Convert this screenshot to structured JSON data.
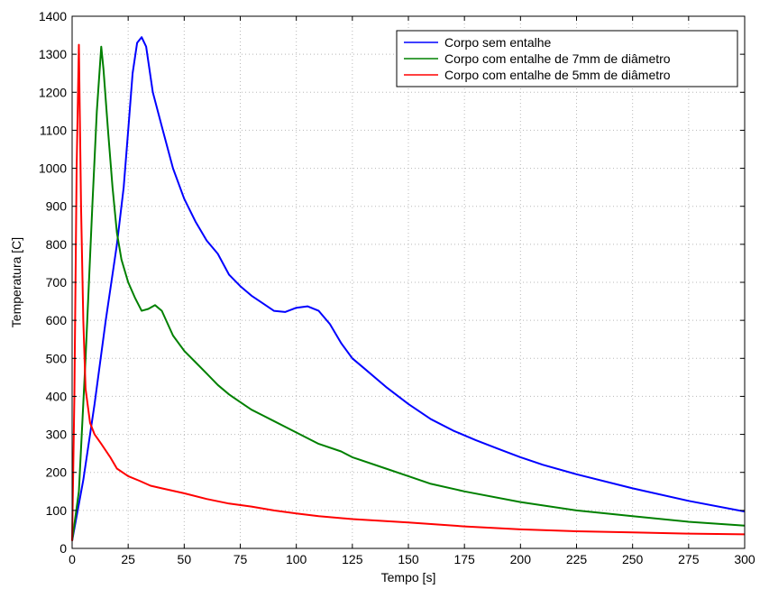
{
  "chart_data": {
    "type": "line",
    "title": "",
    "xlabel": "Tempo [s]",
    "ylabel": "Temperatura [C]",
    "xlim": [
      0,
      300
    ],
    "ylim": [
      0,
      1400
    ],
    "x_ticks": [
      0,
      25,
      50,
      75,
      100,
      125,
      150,
      175,
      200,
      225,
      250,
      275,
      300
    ],
    "y_ticks": [
      0,
      100,
      200,
      300,
      400,
      500,
      600,
      700,
      800,
      900,
      1000,
      1100,
      1200,
      1300,
      1400
    ],
    "grid": true,
    "legend_position": "top-right",
    "series": [
      {
        "name": "Corpo sem entalhe",
        "color": "#0000ff",
        "points": [
          [
            0,
            20
          ],
          [
            5,
            180
          ],
          [
            10,
            380
          ],
          [
            15,
            600
          ],
          [
            20,
            800
          ],
          [
            23,
            950
          ],
          [
            25,
            1100
          ],
          [
            27,
            1250
          ],
          [
            29,
            1330
          ],
          [
            31,
            1345
          ],
          [
            33,
            1320
          ],
          [
            36,
            1200
          ],
          [
            40,
            1110
          ],
          [
            45,
            1000
          ],
          [
            50,
            920
          ],
          [
            55,
            860
          ],
          [
            60,
            810
          ],
          [
            65,
            775
          ],
          [
            70,
            720
          ],
          [
            75,
            690
          ],
          [
            80,
            665
          ],
          [
            85,
            645
          ],
          [
            90,
            625
          ],
          [
            95,
            622
          ],
          [
            100,
            633
          ],
          [
            105,
            637
          ],
          [
            110,
            625
          ],
          [
            115,
            590
          ],
          [
            120,
            540
          ],
          [
            125,
            500
          ],
          [
            130,
            475
          ],
          [
            140,
            425
          ],
          [
            150,
            380
          ],
          [
            160,
            340
          ],
          [
            170,
            310
          ],
          [
            180,
            285
          ],
          [
            190,
            262
          ],
          [
            200,
            240
          ],
          [
            210,
            220
          ],
          [
            225,
            195
          ],
          [
            250,
            158
          ],
          [
            275,
            125
          ],
          [
            300,
            97
          ]
        ]
      },
      {
        "name": "Corpo com entalhe de 7mm de diâmetro",
        "color": "#008000",
        "points": [
          [
            0,
            20
          ],
          [
            3,
            150
          ],
          [
            6,
            500
          ],
          [
            9,
            900
          ],
          [
            11,
            1150
          ],
          [
            13,
            1320
          ],
          [
            14,
            1260
          ],
          [
            16,
            1100
          ],
          [
            18,
            950
          ],
          [
            20,
            830
          ],
          [
            22,
            760
          ],
          [
            25,
            700
          ],
          [
            28,
            660
          ],
          [
            31,
            625
          ],
          [
            34,
            630
          ],
          [
            37,
            640
          ],
          [
            40,
            625
          ],
          [
            45,
            560
          ],
          [
            50,
            520
          ],
          [
            55,
            490
          ],
          [
            60,
            460
          ],
          [
            65,
            430
          ],
          [
            70,
            405
          ],
          [
            75,
            385
          ],
          [
            80,
            365
          ],
          [
            85,
            350
          ],
          [
            90,
            335
          ],
          [
            95,
            320
          ],
          [
            100,
            305
          ],
          [
            110,
            275
          ],
          [
            120,
            255
          ],
          [
            125,
            240
          ],
          [
            140,
            210
          ],
          [
            150,
            190
          ],
          [
            160,
            170
          ],
          [
            175,
            150
          ],
          [
            200,
            122
          ],
          [
            225,
            100
          ],
          [
            250,
            85
          ],
          [
            275,
            70
          ],
          [
            300,
            60
          ]
        ]
      },
      {
        "name": "Corpo com entalhe de 5mm de diâmetro",
        "color": "#ff0000",
        "points": [
          [
            0,
            20
          ],
          [
            1,
            400
          ],
          [
            2,
            1000
          ],
          [
            3,
            1325
          ],
          [
            4,
            900
          ],
          [
            5,
            600
          ],
          [
            6,
            420
          ],
          [
            8,
            330
          ],
          [
            10,
            300
          ],
          [
            13,
            275
          ],
          [
            17,
            240
          ],
          [
            20,
            210
          ],
          [
            25,
            190
          ],
          [
            30,
            178
          ],
          [
            35,
            165
          ],
          [
            40,
            158
          ],
          [
            50,
            145
          ],
          [
            60,
            130
          ],
          [
            70,
            118
          ],
          [
            80,
            110
          ],
          [
            90,
            100
          ],
          [
            100,
            92
          ],
          [
            110,
            85
          ],
          [
            125,
            77
          ],
          [
            150,
            68
          ],
          [
            175,
            58
          ],
          [
            200,
            50
          ],
          [
            225,
            45
          ],
          [
            250,
            42
          ],
          [
            275,
            39
          ],
          [
            300,
            37
          ]
        ]
      }
    ]
  }
}
